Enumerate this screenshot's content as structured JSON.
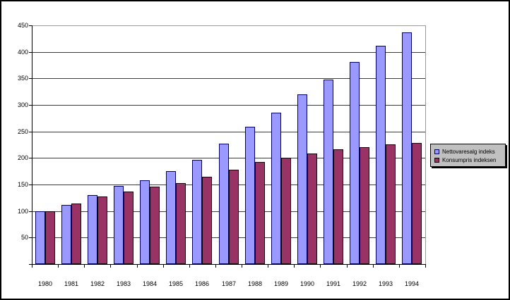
{
  "chart_data": {
    "type": "bar",
    "title": "",
    "xlabel": "",
    "ylabel": "",
    "categories": [
      "1980",
      "1981",
      "1982",
      "1983",
      "1984",
      "1985",
      "1986",
      "1987",
      "1988",
      "1989",
      "1990",
      "1991",
      "1992",
      "1993",
      "1994"
    ],
    "series": [
      {
        "name": "Nettovaresalg indeks",
        "color": "#9999FF",
        "border_color": "#000066",
        "values": [
          100,
          112,
          130,
          147,
          158,
          175,
          196,
          227,
          259,
          286,
          320,
          348,
          381,
          412,
          437
        ]
      },
      {
        "name": "Konsumpris indeksen",
        "color": "#993366",
        "border_color": "#14000a",
        "values": [
          100,
          114,
          128,
          137,
          146,
          153,
          165,
          178,
          192,
          200,
          209,
          216,
          221,
          225,
          228
        ]
      }
    ],
    "ylim": [
      0,
      450
    ],
    "yticks": [
      50,
      100,
      150,
      200,
      250,
      300,
      350,
      400,
      450
    ],
    "grid": true,
    "legend_position": "right",
    "legend_background": "#C0C0C0",
    "plot_background": "#FFFFFF"
  }
}
